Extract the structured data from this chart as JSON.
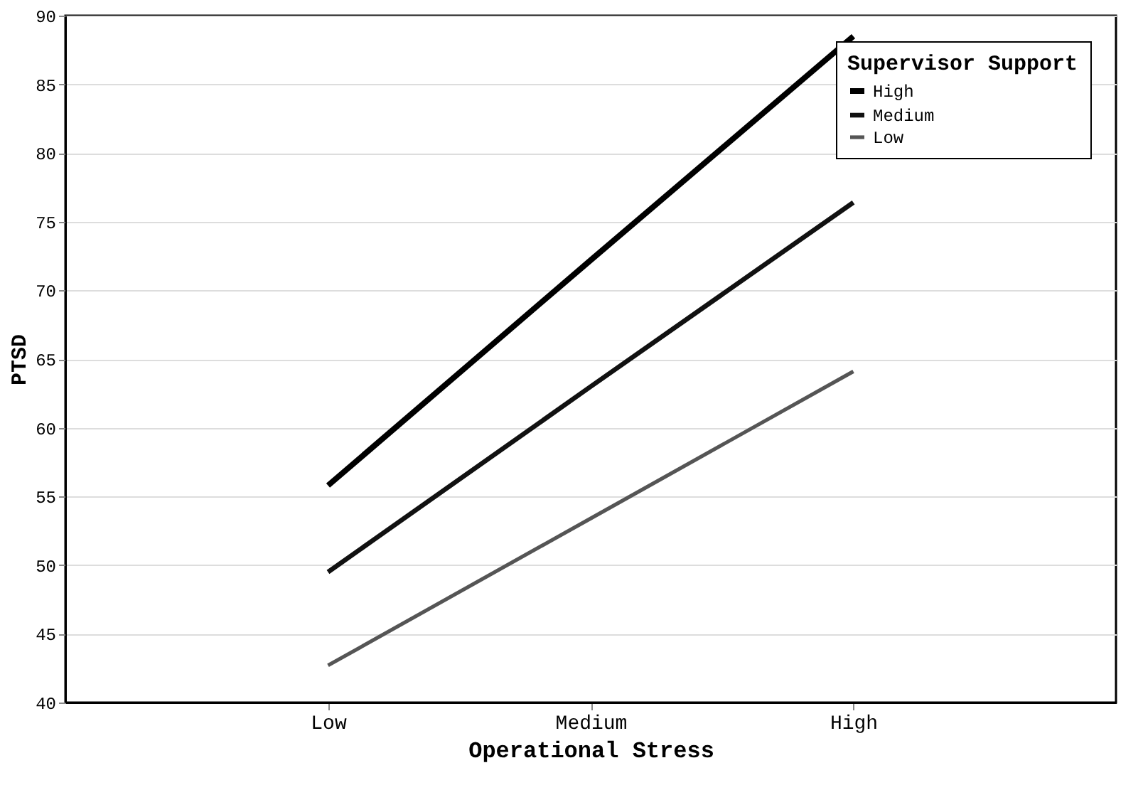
{
  "chart_data": {
    "type": "line",
    "xlabel": "Operational Stress",
    "ylabel": "PTSD",
    "legend_title": "Supervisor Support",
    "categories": [
      "Low",
      "Medium",
      "High"
    ],
    "series": [
      {
        "name": "High",
        "color": "#000000",
        "values": [
          55.8,
          72.2,
          88.5
        ]
      },
      {
        "name": "Medium",
        "color": "#111111",
        "values": [
          49.5,
          63.0,
          76.4
        ]
      },
      {
        "name": "Low",
        "color": "#555555",
        "values": [
          42.7,
          53.4,
          64.1
        ]
      }
    ],
    "ylim": [
      40,
      90
    ],
    "yticks": [
      40,
      45,
      50,
      55,
      60,
      65,
      70,
      75,
      80,
      85,
      90
    ],
    "grid": "y",
    "legend": "top right",
    "marker": "none",
    "line_style": "solid"
  }
}
